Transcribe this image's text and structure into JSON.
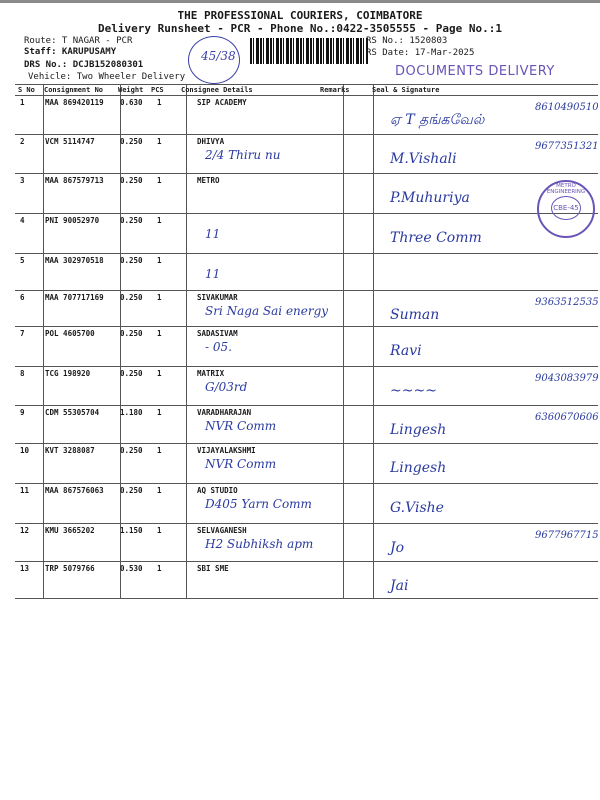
{
  "header": {
    "company": "THE PROFESSIONAL COURIERS, COIMBATORE",
    "subtitle": "Delivery Runsheet - PCR - Phone No.:0422-3505555 - Page No.:1",
    "route": "Route: T NAGAR - PCR",
    "staff": "Staff: KARUPUSAMY",
    "drs": "DRS No.: DCJB152080301",
    "vehicle": "Vehicle: Two Wheeler Delivery",
    "rs_no": "RS No.: 1520803",
    "rs_date": "RS Date: 17-Mar-2025",
    "circled_note": "45/38",
    "stamp": "DOCUMENTS DELIVERY"
  },
  "table": {
    "columns": [
      "S No",
      "Consignment No",
      "Weight",
      "PCS",
      "Consignee Details",
      "Remarks",
      "Seal & Signature"
    ],
    "rows": [
      {
        "sno": "1",
        "cno": "MAA 869420119",
        "weight": "0.630",
        "pcs": "1",
        "consignee": "SIP ACADEMY",
        "note": "",
        "sign": "ஏ T தங்கவேல்",
        "phone": "8610490510"
      },
      {
        "sno": "2",
        "cno": "VCM 5114747",
        "weight": "0.250",
        "pcs": "1",
        "consignee": "DHIVYA",
        "note": "2/4 Thiru nu",
        "sign": "M.Vishali",
        "phone": "9677351321"
      },
      {
        "sno": "3",
        "cno": "MAA 867579713",
        "weight": "0.250",
        "pcs": "1",
        "consignee": "METRO",
        "note": "",
        "sign": "P.Muhuriya",
        "phone": ""
      },
      {
        "sno": "4",
        "cno": "PNI 90052970",
        "weight": "0.250",
        "pcs": "1",
        "consignee": "",
        "note": "11",
        "sign": "Three Comm",
        "phone": ""
      },
      {
        "sno": "5",
        "cno": "MAA 302970518",
        "weight": "0.250",
        "pcs": "1",
        "consignee": "",
        "note": "11",
        "sign": "",
        "phone": ""
      },
      {
        "sno": "6",
        "cno": "MAA 707717169",
        "weight": "0.250",
        "pcs": "1",
        "consignee": "SIVAKUMAR",
        "note": "Sri Naga Sai energy",
        "sign": "Suman",
        "phone": "9363512535"
      },
      {
        "sno": "7",
        "cno": "POL 4605700",
        "weight": "0.250",
        "pcs": "1",
        "consignee": "SADASIVAM",
        "note": "- 05.",
        "sign": "Ravi",
        "phone": ""
      },
      {
        "sno": "8",
        "cno": "TCG 198920",
        "weight": "0.250",
        "pcs": "1",
        "consignee": "MATRIX",
        "note": "G/03rd",
        "sign": "~~~~",
        "phone": "9043083979"
      },
      {
        "sno": "9",
        "cno": "CDM 55305704",
        "weight": "1.180",
        "pcs": "1",
        "consignee": "VARADHARAJAN",
        "note": "NVR Comm",
        "sign": "Lingesh",
        "phone": "6360670606"
      },
      {
        "sno": "10",
        "cno": "KVT 3288087",
        "weight": "0.250",
        "pcs": "1",
        "consignee": "VIJAYALAKSHMI",
        "note": "NVR Comm",
        "sign": "Lingesh",
        "phone": ""
      },
      {
        "sno": "11",
        "cno": "MAA 867576063",
        "weight": "0.250",
        "pcs": "1",
        "consignee": "AQ STUDIO",
        "note": "D405 Yarn Comm",
        "sign": "G.Vishe",
        "phone": ""
      },
      {
        "sno": "12",
        "cno": "KMU 3665202",
        "weight": "1.150",
        "pcs": "1",
        "consignee": "SELVAGANESH",
        "note": "H2 Subhiksh apm",
        "sign": "Jo",
        "phone": "9677967715"
      },
      {
        "sno": "13",
        "cno": "TRP 5079766",
        "weight": "0.530",
        "pcs": "1",
        "consignee": "SBI SME",
        "note": "",
        "sign": "Jai",
        "phone": ""
      }
    ]
  },
  "seal": {
    "ring": "METRO ENGINEERING",
    "center": "CBE-45"
  },
  "colors": {
    "ink": "#2a3aa0",
    "stamp": "#6a54b8"
  }
}
